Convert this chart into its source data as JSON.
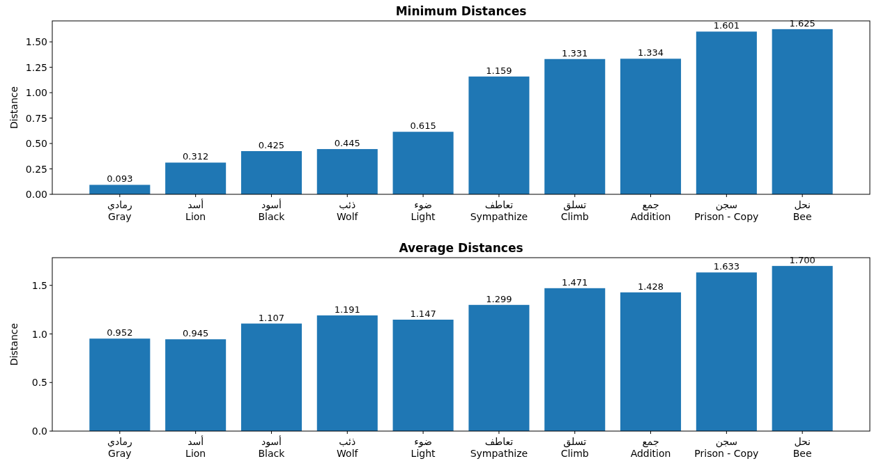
{
  "chart_data": [
    {
      "type": "bar",
      "title": "Minimum Distances",
      "ylabel": "Distance",
      "color": "#1f77b4",
      "categories": [
        "رمادي\nGray",
        "أسد\nLion",
        "أسود\nBlack",
        "ذئب\nWolf",
        "ضوء\nLight",
        "تعاطف\nSympathize",
        "تسلق\nClimb",
        "جمع\nAddition",
        "سجن\nPrison - Copy",
        "نحل\nBee"
      ],
      "values": [
        0.093,
        0.312,
        0.425,
        0.445,
        0.615,
        1.159,
        1.331,
        1.334,
        1.601,
        1.625
      ],
      "value_labels": [
        "0.093",
        "0.312",
        "0.425",
        "0.445",
        "0.615",
        "1.159",
        "1.331",
        "1.334",
        "1.601",
        "1.625"
      ],
      "ylim": [
        0,
        1.70625
      ],
      "yticks": [
        {
          "value": 0,
          "label": "0.00"
        },
        {
          "value": 0.25,
          "label": "0.25"
        },
        {
          "value": 0.5,
          "label": "0.50"
        },
        {
          "value": 0.75,
          "label": "0.75"
        },
        {
          "value": 1,
          "label": "1.00"
        },
        {
          "value": 1.25,
          "label": "1.25"
        },
        {
          "value": 1.5,
          "label": "1.50"
        }
      ]
    },
    {
      "type": "bar",
      "title": "Average Distances",
      "ylabel": "Distance",
      "color": "#1f77b4",
      "categories": [
        "رمادي\nGray",
        "أسد\nLion",
        "أسود\nBlack",
        "ذئب\nWolf",
        "ضوء\nLight",
        "تعاطف\nSympathize",
        "تسلق\nClimb",
        "جمع\nAddition",
        "سجن\nPrison - Copy",
        "نحل\nBee"
      ],
      "values": [
        0.952,
        0.945,
        1.107,
        1.191,
        1.147,
        1.299,
        1.471,
        1.428,
        1.633,
        1.7
      ],
      "value_labels": [
        "0.952",
        "0.945",
        "1.107",
        "1.191",
        "1.147",
        "1.299",
        "1.471",
        "1.428",
        "1.633",
        "1.700"
      ],
      "ylim": [
        0,
        1.785
      ],
      "yticks": [
        {
          "value": 0,
          "label": "0.0"
        },
        {
          "value": 0.5,
          "label": "0.5"
        },
        {
          "value": 1,
          "label": "1.0"
        },
        {
          "value": 1.5,
          "label": "1.5"
        }
      ]
    }
  ]
}
